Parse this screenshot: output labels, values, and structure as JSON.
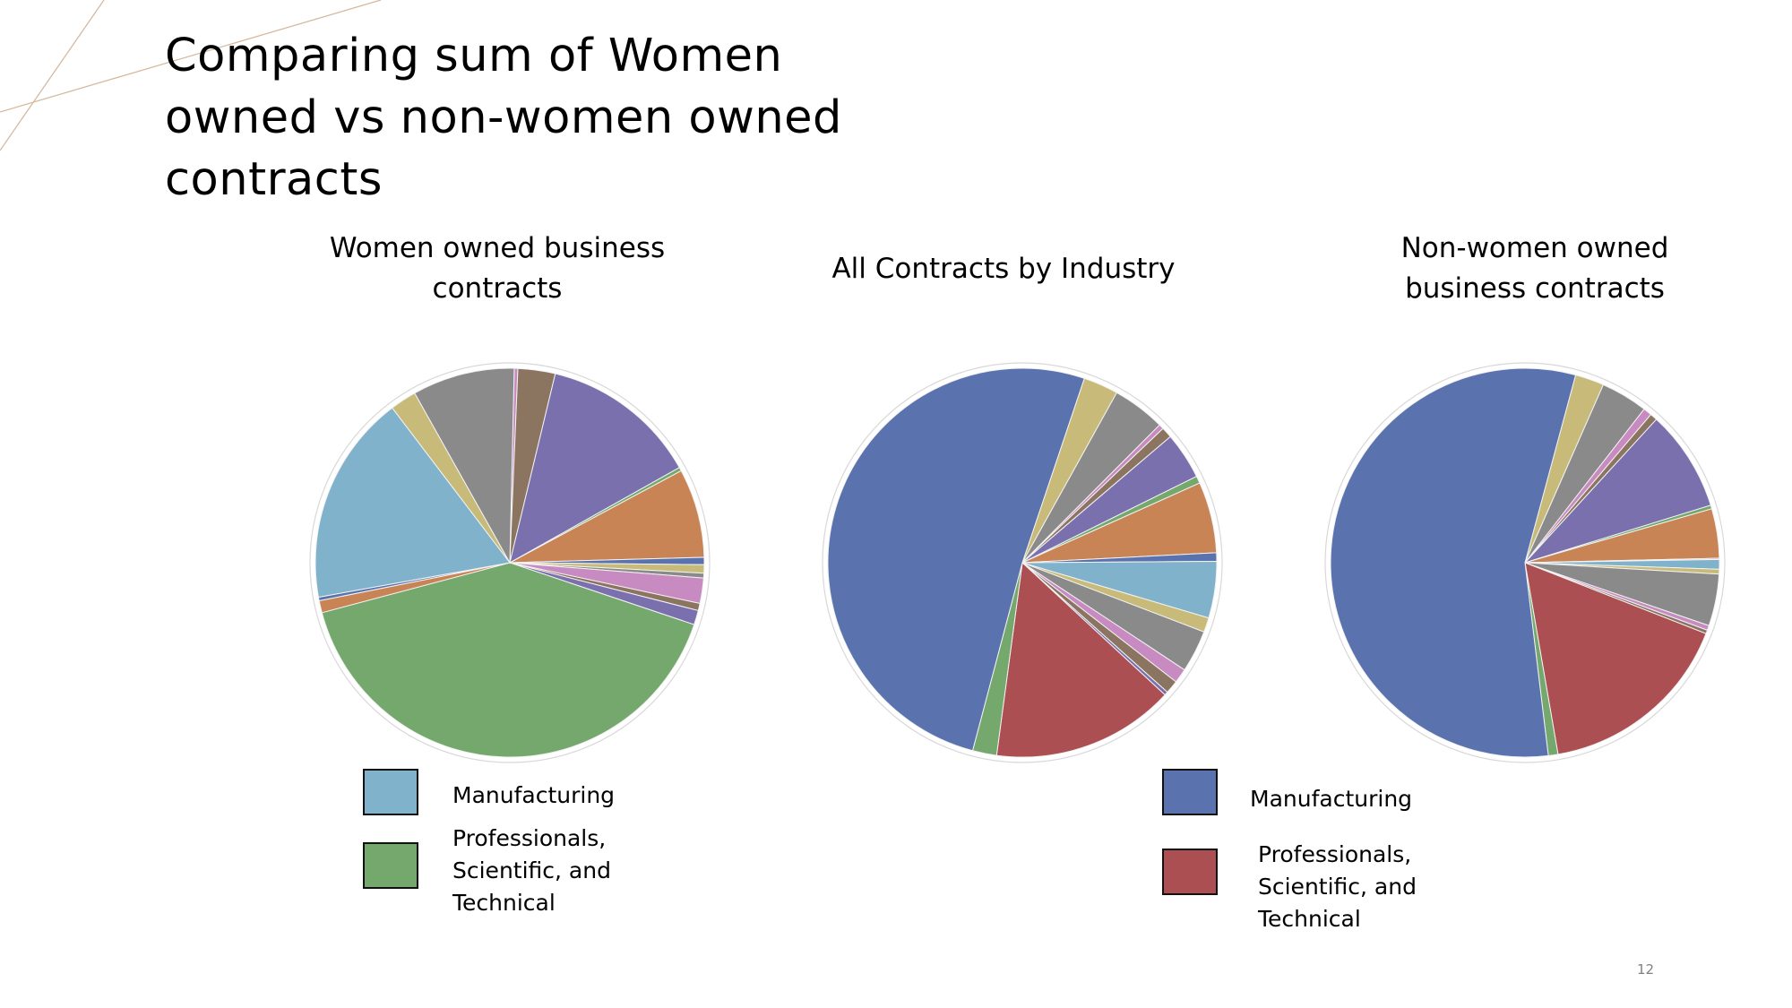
{
  "slide": {
    "title_lines": [
      "Comparing sum of Women",
      "owned vs non-women owned",
      "contracts"
    ],
    "page_number": "12",
    "decor_color": "#d5b9a0"
  },
  "legends": [
    {
      "items": [
        {
          "label_lines": [
            "Manufacturing"
          ],
          "color": "#80b2cb"
        },
        {
          "label_lines": [
            "Professionals,",
            "Scientific, and",
            "Technical"
          ],
          "color": "#74a86d"
        }
      ]
    },
    {
      "items": [
        {
          "label_lines": [
            "Manufacturing"
          ],
          "color": "#5a72ae"
        },
        {
          "label_lines": [
            "Professionals,",
            "Scientific, and",
            "Technical"
          ],
          "color": "#ab4f53"
        }
      ]
    }
  ],
  "chart_data": [
    {
      "type": "pie",
      "title_lines": [
        "Women owned business",
        "contracts"
      ],
      "unit": "percent",
      "start_angle_deg": 1.3,
      "slices": [
        {
          "label": null,
          "value": 0.3,
          "color": "#c88bc1"
        },
        {
          "label": null,
          "value": 3.1,
          "color": "#8b7460"
        },
        {
          "label": null,
          "value": 13.1,
          "color": "#7b70ae"
        },
        {
          "label": null,
          "value": 0.3,
          "color": "#74a86d"
        },
        {
          "label": null,
          "value": 7.4,
          "color": "#c98456"
        },
        {
          "label": null,
          "value": 0.6,
          "color": "#5a72ae"
        },
        {
          "label": null,
          "value": 0.7,
          "color": "#c8bb7a"
        },
        {
          "label": null,
          "value": 0.4,
          "color": "#8a8a8a"
        },
        {
          "label": null,
          "value": 2.1,
          "color": "#c88bc1"
        },
        {
          "label": null,
          "value": 0.6,
          "color": "#8b7460"
        },
        {
          "label": null,
          "value": 1.2,
          "color": "#7b70ae"
        },
        {
          "label": "Professionals, Scientific, and Technical",
          "value": 40.7,
          "color": "#74a86d"
        },
        {
          "label": null,
          "value": 1.0,
          "color": "#c98456"
        },
        {
          "label": null,
          "value": 0.3,
          "color": "#5a72ae"
        },
        {
          "label": "Manufacturing",
          "value": 17.5,
          "color": "#80b2cb"
        },
        {
          "label": null,
          "value": 2.2,
          "color": "#c8bb7a"
        },
        {
          "label": null,
          "value": 8.5,
          "color": "#8a8a8a"
        }
      ]
    },
    {
      "type": "pie",
      "title_lines": [
        "All Contracts by Industry"
      ],
      "unit": "percent",
      "start_angle_deg": 18.6,
      "slices": [
        {
          "label": null,
          "value": 2.9,
          "color": "#c8bb7a"
        },
        {
          "label": null,
          "value": 4.4,
          "color": "#8a8a8a"
        },
        {
          "label": null,
          "value": 0.4,
          "color": "#c88bc1"
        },
        {
          "label": null,
          "value": 0.9,
          "color": "#8b7460"
        },
        {
          "label": null,
          "value": 3.9,
          "color": "#7b70ae"
        },
        {
          "label": null,
          "value": 0.6,
          "color": "#74a86d"
        },
        {
          "label": null,
          "value": 5.9,
          "color": "#c98456"
        },
        {
          "label": null,
          "value": 0.7,
          "color": "#5a72ae"
        },
        {
          "label": null,
          "value": 4.7,
          "color": "#80b2cb"
        },
        {
          "label": null,
          "value": 1.2,
          "color": "#c8bb7a"
        },
        {
          "label": null,
          "value": 3.5,
          "color": "#8a8a8a"
        },
        {
          "label": null,
          "value": 1.2,
          "color": "#c88bc1"
        },
        {
          "label": null,
          "value": 1.1,
          "color": "#8b7460"
        },
        {
          "label": null,
          "value": 0.3,
          "color": "#7b70ae"
        },
        {
          "label": "Professionals, Scientific, and Technical",
          "value": 15.2,
          "color": "#ab4f53"
        },
        {
          "label": null,
          "value": 2.0,
          "color": "#74a86d"
        },
        {
          "label": "Manufacturing",
          "value": 51.0,
          "color": "#5a72ae"
        }
      ]
    },
    {
      "type": "pie",
      "title_lines": [
        "Non-women owned",
        "business contracts"
      ],
      "unit": "percent",
      "start_angle_deg": 15.1,
      "slices": [
        {
          "label": null,
          "value": 2.4,
          "color": "#c8bb7a"
        },
        {
          "label": null,
          "value": 3.9,
          "color": "#8a8a8a"
        },
        {
          "label": null,
          "value": 0.7,
          "color": "#c88bc1"
        },
        {
          "label": null,
          "value": 0.6,
          "color": "#8b7460"
        },
        {
          "label": null,
          "value": 8.4,
          "color": "#7b70ae"
        },
        {
          "label": null,
          "value": 0.3,
          "color": "#74a86d"
        },
        {
          "label": null,
          "value": 4.1,
          "color": "#c98456"
        },
        {
          "label": null,
          "value": 0.1,
          "color": "#c88bc1"
        },
        {
          "label": null,
          "value": 0.8,
          "color": "#80b2cb"
        },
        {
          "label": null,
          "value": 0.4,
          "color": "#c8bb7a"
        },
        {
          "label": null,
          "value": 4.3,
          "color": "#8a8a8a"
        },
        {
          "label": null,
          "value": 0.4,
          "color": "#c88bc1"
        },
        {
          "label": null,
          "value": 0.3,
          "color": "#8b7460"
        },
        {
          "label": "Professionals, Scientific, and Technical",
          "value": 16.3,
          "color": "#ab4f53"
        },
        {
          "label": null,
          "value": 0.8,
          "color": "#74a86d"
        },
        {
          "label": "Manufacturing",
          "value": 56.0,
          "color": "#5a72ae"
        }
      ]
    }
  ]
}
